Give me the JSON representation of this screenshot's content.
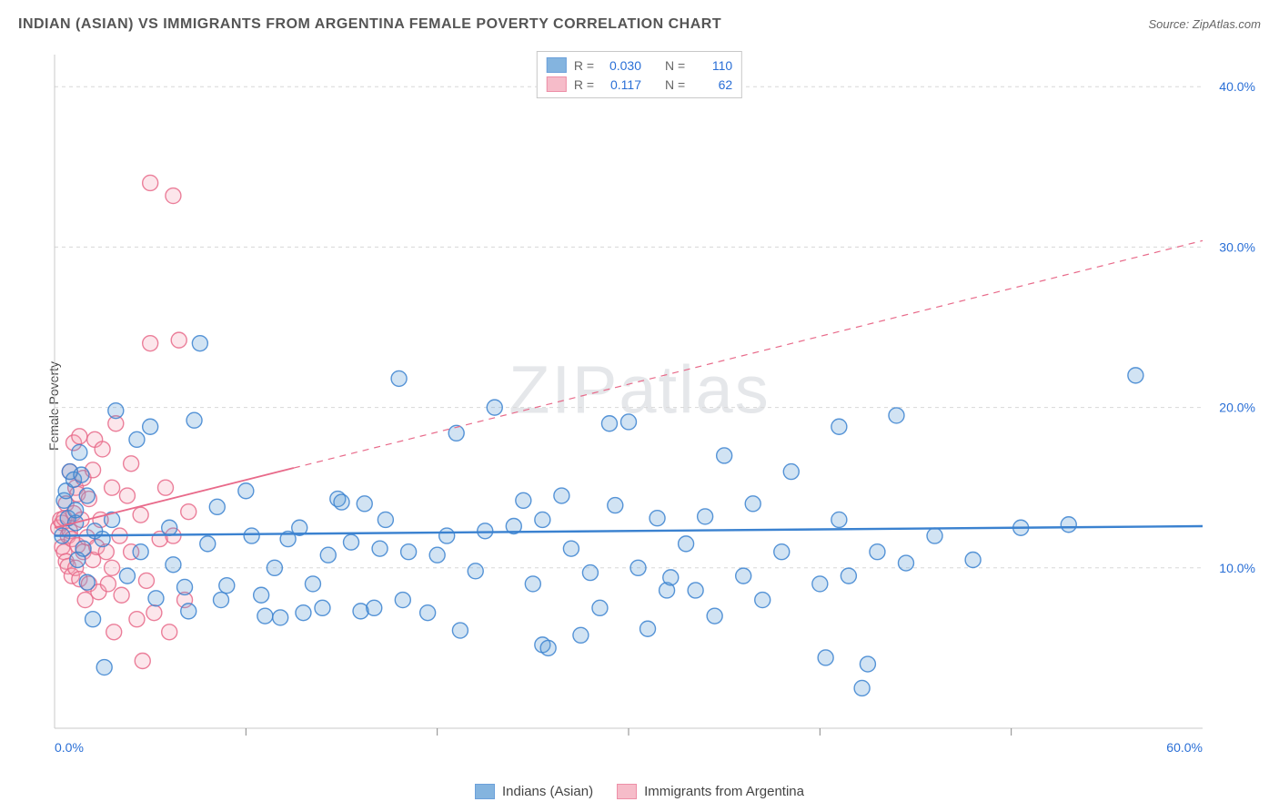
{
  "title": "INDIAN (ASIAN) VS IMMIGRANTS FROM ARGENTINA FEMALE POVERTY CORRELATION CHART",
  "source_label": "Source: ",
  "source_value": "ZipAtlas.com",
  "y_axis_label": "Female Poverty",
  "watermark": "ZIPatlas",
  "chart": {
    "type": "scatter",
    "background_color": "#ffffff",
    "grid_color": "#d8d8d8",
    "plot_border_color": "#c8c8c8",
    "axis_tick_color": "#888",
    "x_range": [
      0,
      60
    ],
    "y_range": [
      0,
      42
    ],
    "x_ticks_major": [
      0,
      60
    ],
    "x_ticks_minor": [
      10,
      20,
      30,
      40,
      50
    ],
    "y_ticks_major": [
      10,
      20,
      30,
      40
    ],
    "y_grid": [
      10,
      20,
      30,
      40
    ],
    "x_tick_label_suffix": "%",
    "y_tick_label_suffix": "%",
    "tick_label_color": "#2a6fd6",
    "tick_label_fontsize": 14,
    "marker_radius": 8.5,
    "marker_stroke_width": 1.4,
    "marker_fill_opacity": 0.28,
    "series": [
      {
        "name": "Indians (Asian)",
        "color": "#5b9bd5",
        "stroke": "#3b82d0",
        "R": "0.030",
        "N": "110",
        "trend": {
          "y_at_x0": 12.0,
          "y_at_xmax": 12.6,
          "dashed": false,
          "width": 2.4
        },
        "points": [
          [
            0.4,
            12.0
          ],
          [
            0.5,
            14.2
          ],
          [
            0.6,
            14.8
          ],
          [
            0.7,
            13.1
          ],
          [
            0.8,
            16.0
          ],
          [
            1.0,
            15.5
          ],
          [
            1.1,
            12.8
          ],
          [
            1.1,
            13.6
          ],
          [
            1.2,
            10.5
          ],
          [
            1.3,
            17.2
          ],
          [
            1.4,
            15.8
          ],
          [
            1.5,
            11.2
          ],
          [
            1.7,
            9.1
          ],
          [
            1.7,
            14.5
          ],
          [
            2.0,
            6.8
          ],
          [
            2.1,
            12.3
          ],
          [
            2.5,
            11.8
          ],
          [
            2.6,
            3.8
          ],
          [
            3.0,
            13.0
          ],
          [
            3.2,
            19.8
          ],
          [
            3.8,
            9.5
          ],
          [
            4.3,
            18.0
          ],
          [
            4.5,
            11.0
          ],
          [
            5.0,
            18.8
          ],
          [
            5.3,
            8.1
          ],
          [
            6.0,
            12.5
          ],
          [
            6.2,
            10.2
          ],
          [
            6.8,
            8.8
          ],
          [
            7.0,
            7.3
          ],
          [
            7.3,
            19.2
          ],
          [
            7.6,
            24.0
          ],
          [
            8.0,
            11.5
          ],
          [
            8.5,
            13.8
          ],
          [
            8.7,
            8.0
          ],
          [
            9.0,
            8.9
          ],
          [
            10.0,
            14.8
          ],
          [
            10.3,
            12.0
          ],
          [
            10.8,
            8.3
          ],
          [
            11.0,
            7.0
          ],
          [
            11.5,
            10.0
          ],
          [
            11.8,
            6.9
          ],
          [
            12.2,
            11.8
          ],
          [
            12.8,
            12.5
          ],
          [
            13.0,
            7.2
          ],
          [
            13.5,
            9.0
          ],
          [
            14.0,
            7.5
          ],
          [
            14.3,
            10.8
          ],
          [
            14.8,
            14.3
          ],
          [
            15.0,
            14.1
          ],
          [
            15.5,
            11.6
          ],
          [
            16.0,
            7.3
          ],
          [
            16.2,
            14.0
          ],
          [
            16.7,
            7.5
          ],
          [
            17.0,
            11.2
          ],
          [
            17.3,
            13.0
          ],
          [
            18.0,
            21.8
          ],
          [
            18.2,
            8.0
          ],
          [
            18.5,
            11.0
          ],
          [
            19.5,
            7.2
          ],
          [
            20.0,
            10.8
          ],
          [
            20.5,
            12.0
          ],
          [
            21.0,
            18.4
          ],
          [
            21.2,
            6.1
          ],
          [
            22.0,
            9.8
          ],
          [
            22.5,
            12.3
          ],
          [
            23.0,
            20.0
          ],
          [
            24.0,
            12.6
          ],
          [
            24.5,
            14.2
          ],
          [
            25.0,
            9.0
          ],
          [
            25.5,
            13.0
          ],
          [
            25.5,
            5.2
          ],
          [
            25.8,
            5.0
          ],
          [
            26.5,
            14.5
          ],
          [
            27.0,
            11.2
          ],
          [
            27.5,
            5.8
          ],
          [
            28.0,
            9.7
          ],
          [
            28.5,
            7.5
          ],
          [
            29.0,
            19.0
          ],
          [
            29.3,
            13.9
          ],
          [
            30.0,
            19.1
          ],
          [
            30.5,
            10.0
          ],
          [
            31.0,
            6.2
          ],
          [
            31.5,
            13.1
          ],
          [
            32.0,
            8.6
          ],
          [
            32.2,
            9.4
          ],
          [
            33.0,
            11.5
          ],
          [
            33.5,
            8.6
          ],
          [
            34.0,
            13.2
          ],
          [
            34.5,
            7.0
          ],
          [
            35.0,
            17.0
          ],
          [
            36.0,
            9.5
          ],
          [
            36.5,
            14.0
          ],
          [
            37.0,
            8.0
          ],
          [
            38.0,
            11.0
          ],
          [
            38.5,
            16.0
          ],
          [
            40.0,
            9.0
          ],
          [
            40.3,
            4.4
          ],
          [
            41.0,
            18.8
          ],
          [
            41.0,
            13.0
          ],
          [
            41.5,
            9.5
          ],
          [
            42.5,
            4.0
          ],
          [
            43.0,
            11.0
          ],
          [
            44.0,
            19.5
          ],
          [
            44.5,
            10.3
          ],
          [
            46.0,
            12.0
          ],
          [
            48.0,
            10.5
          ],
          [
            50.5,
            12.5
          ],
          [
            53.0,
            12.7
          ],
          [
            56.5,
            22.0
          ],
          [
            42.2,
            2.5
          ]
        ]
      },
      {
        "name": "Immigrants from Argentina",
        "color": "#f4a6b8",
        "stroke": "#e86a8a",
        "R": "0.117",
        "N": "62",
        "trend": {
          "y_at_x0": 12.5,
          "y_at_xmax": 30.4,
          "dashed_after_x": 12.5,
          "width": 1.8
        },
        "points": [
          [
            0.2,
            12.5
          ],
          [
            0.3,
            13.0
          ],
          [
            0.4,
            11.3
          ],
          [
            0.4,
            12.8
          ],
          [
            0.5,
            13.1
          ],
          [
            0.5,
            11.0
          ],
          [
            0.6,
            10.4
          ],
          [
            0.6,
            14.0
          ],
          [
            0.7,
            10.1
          ],
          [
            0.7,
            12.0
          ],
          [
            0.8,
            16.0
          ],
          [
            0.8,
            12.3
          ],
          [
            0.9,
            11.8
          ],
          [
            0.9,
            9.5
          ],
          [
            1.0,
            13.4
          ],
          [
            1.0,
            17.8
          ],
          [
            1.1,
            15.0
          ],
          [
            1.1,
            10.0
          ],
          [
            1.2,
            14.6
          ],
          [
            1.2,
            11.4
          ],
          [
            1.3,
            18.2
          ],
          [
            1.3,
            9.3
          ],
          [
            1.4,
            13.0
          ],
          [
            1.5,
            15.6
          ],
          [
            1.5,
            11.0
          ],
          [
            1.6,
            8.0
          ],
          [
            1.7,
            11.9
          ],
          [
            1.8,
            14.3
          ],
          [
            1.8,
            9.0
          ],
          [
            2.0,
            16.1
          ],
          [
            2.0,
            10.5
          ],
          [
            2.1,
            18.0
          ],
          [
            2.2,
            11.3
          ],
          [
            2.3,
            8.5
          ],
          [
            2.4,
            13.0
          ],
          [
            2.5,
            17.4
          ],
          [
            2.7,
            11.0
          ],
          [
            2.8,
            9.0
          ],
          [
            3.0,
            15.0
          ],
          [
            3.0,
            10.0
          ],
          [
            3.2,
            19.0
          ],
          [
            3.4,
            12.0
          ],
          [
            3.5,
            8.3
          ],
          [
            3.8,
            14.5
          ],
          [
            4.0,
            11.0
          ],
          [
            4.0,
            16.5
          ],
          [
            4.3,
            6.8
          ],
          [
            4.5,
            13.3
          ],
          [
            4.8,
            9.2
          ],
          [
            5.0,
            24.0
          ],
          [
            5.2,
            7.2
          ],
          [
            5.5,
            11.8
          ],
          [
            5.8,
            15.0
          ],
          [
            6.0,
            6.0
          ],
          [
            6.2,
            12.0
          ],
          [
            6.5,
            24.2
          ],
          [
            6.8,
            8.0
          ],
          [
            7.0,
            13.5
          ],
          [
            4.6,
            4.2
          ],
          [
            5.0,
            34.0
          ],
          [
            6.2,
            33.2
          ],
          [
            3.1,
            6.0
          ]
        ]
      }
    ]
  },
  "top_legend_cols": [
    "R =",
    "N ="
  ],
  "bottom_legend": [
    "Indians (Asian)",
    "Immigrants from Argentina"
  ]
}
